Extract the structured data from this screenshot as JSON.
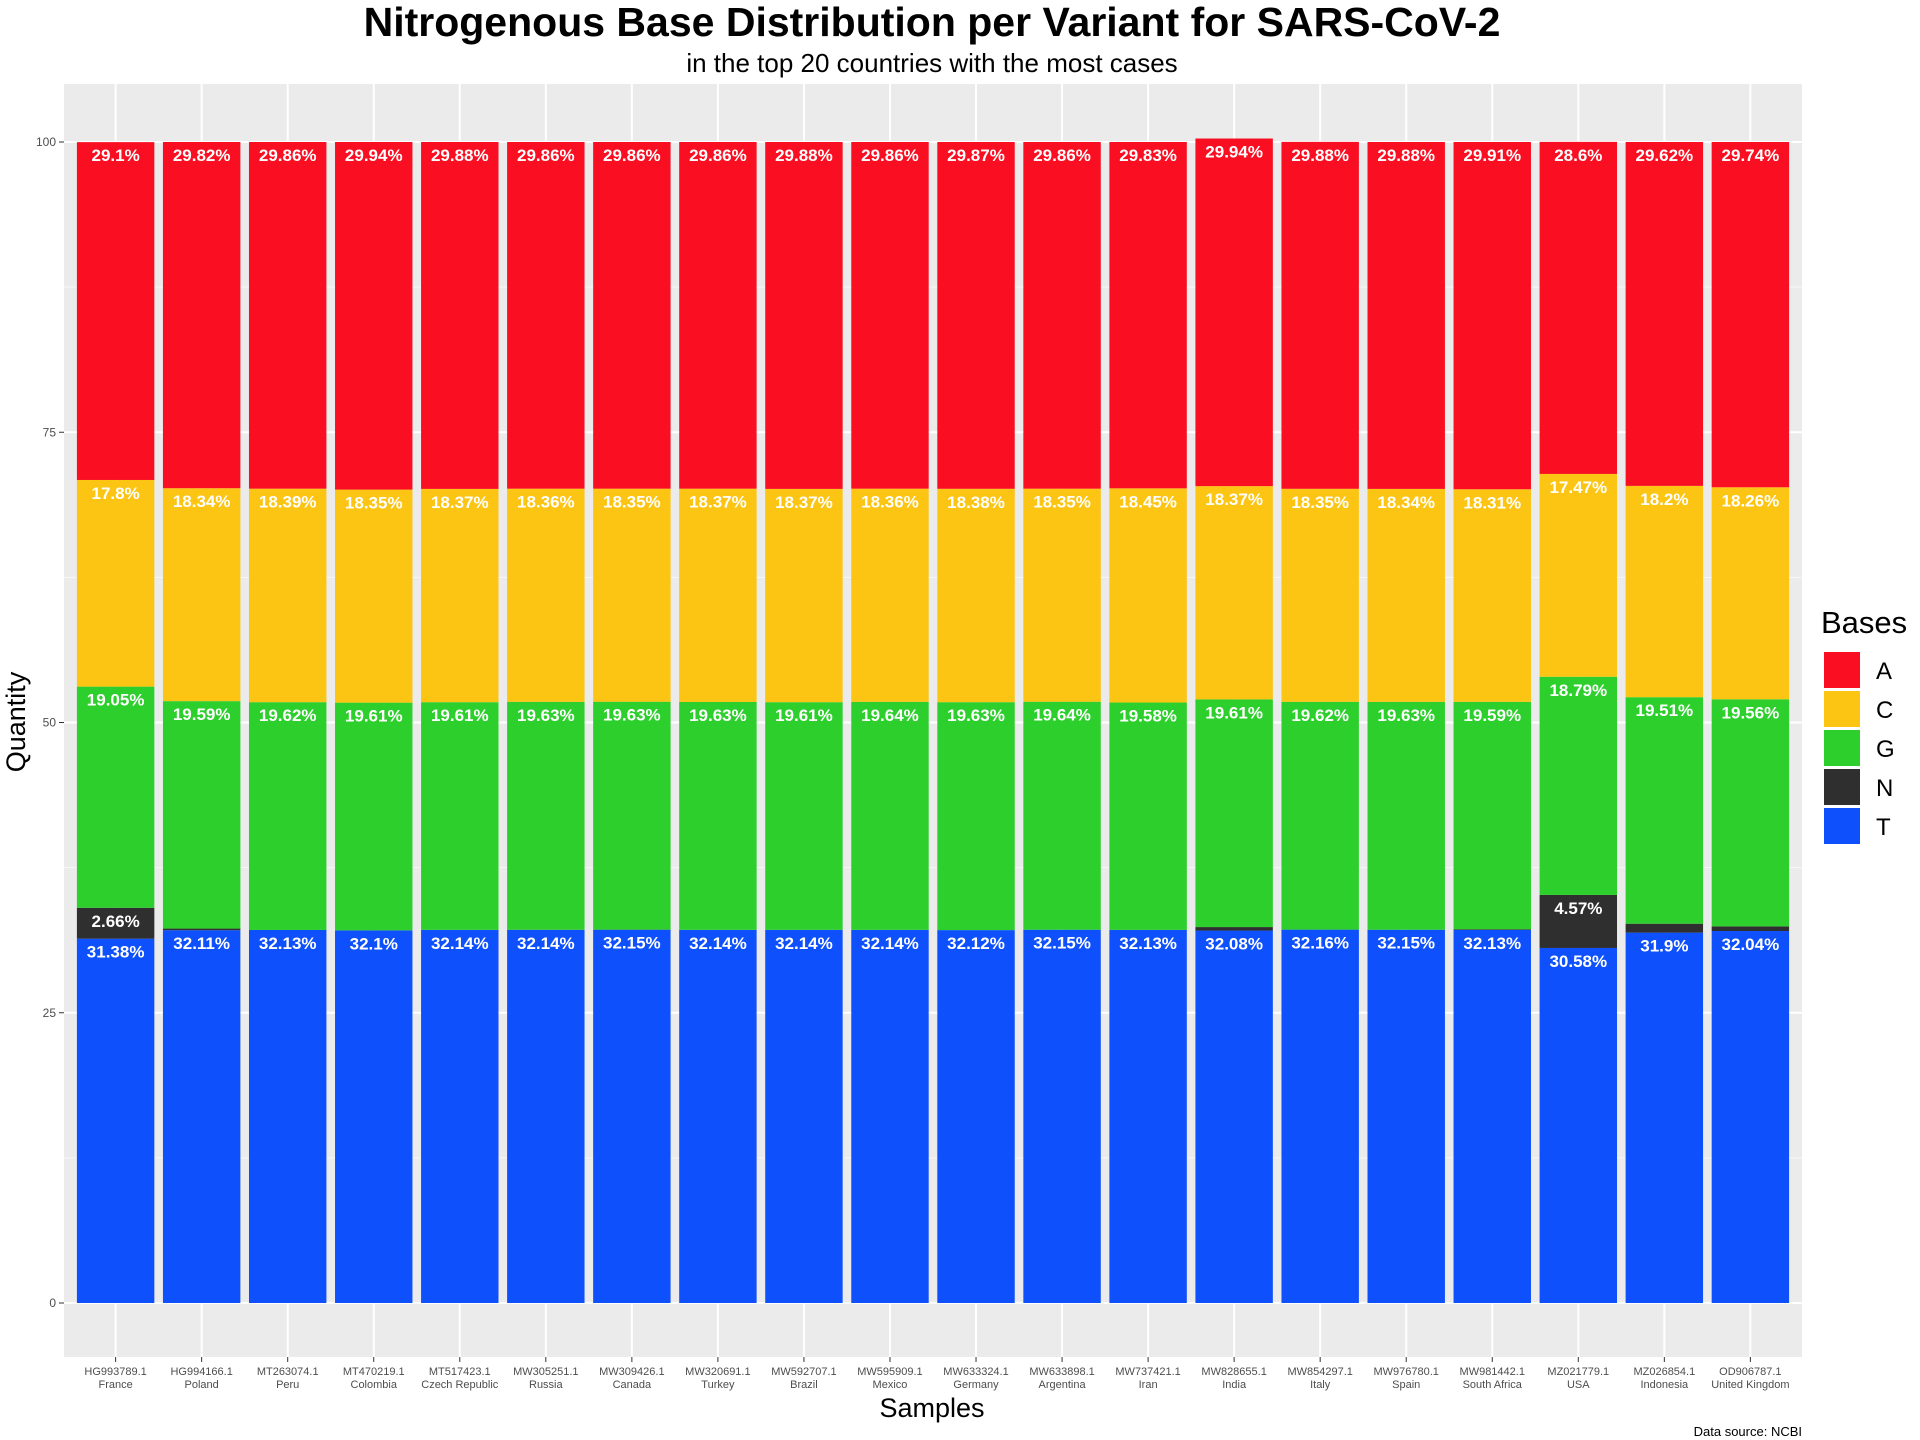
{
  "chart_data": {
    "type": "bar",
    "stacked": true,
    "title": "Nitrogenous Base Distribution per Variant for SARS-CoV-2",
    "subtitle": "in the top 20 countries with the most cases",
    "xlabel": "Samples",
    "ylabel": "Quantity",
    "caption": "Data source: NCBI",
    "ylim": [
      0,
      100
    ],
    "yticks": [
      0,
      25,
      50,
      75,
      100
    ],
    "grid": true,
    "legend": {
      "title": "Bases",
      "placement": "right",
      "items": [
        "A",
        "C",
        "G",
        "N",
        "T"
      ]
    },
    "colors": {
      "A": "#f90f21",
      "C": "#fcc413",
      "G": "#2dcf2d",
      "N": "#2f2f2f",
      "T": "#0f50fd"
    },
    "categories": [
      {
        "id": "HG993789.1",
        "country": "France"
      },
      {
        "id": "HG994166.1",
        "country": "Poland"
      },
      {
        "id": "MT263074.1",
        "country": "Peru"
      },
      {
        "id": "MT470219.1",
        "country": "Colombia"
      },
      {
        "id": "MT517423.1",
        "country": "Czech Republic"
      },
      {
        "id": "MW305251.1",
        "country": "Russia"
      },
      {
        "id": "MW309426.1",
        "country": "Canada"
      },
      {
        "id": "MW320691.1",
        "country": "Turkey"
      },
      {
        "id": "MW592707.1",
        "country": "Brazil"
      },
      {
        "id": "MW595909.1",
        "country": "Mexico"
      },
      {
        "id": "MW633324.1",
        "country": "Germany"
      },
      {
        "id": "MW633898.1",
        "country": "Argentina"
      },
      {
        "id": "MW737421.1",
        "country": "Iran"
      },
      {
        "id": "MW828655.1",
        "country": "India"
      },
      {
        "id": "MW854297.1",
        "country": "Italy"
      },
      {
        "id": "MW976780.1",
        "country": "Spain"
      },
      {
        "id": "MW981442.1",
        "country": "South Africa"
      },
      {
        "id": "MZ021779.1",
        "country": "USA"
      },
      {
        "id": "MZ026854.1",
        "country": "Indonesia"
      },
      {
        "id": "OD906787.1",
        "country": "United Kingdom"
      }
    ],
    "series": [
      {
        "name": "T",
        "values": [
          31.38,
          32.11,
          32.13,
          32.1,
          32.14,
          32.14,
          32.15,
          32.14,
          32.14,
          32.14,
          32.12,
          32.15,
          32.13,
          32.08,
          32.16,
          32.15,
          32.13,
          30.58,
          31.9,
          32.04
        ],
        "labels": [
          "31.38%",
          "32.11%",
          "32.13%",
          "32.1%",
          "32.14%",
          "32.14%",
          "32.15%",
          "32.14%",
          "32.14%",
          "32.14%",
          "32.12%",
          "32.15%",
          "32.13%",
          "32.08%",
          "32.16%",
          "32.15%",
          "32.13%",
          "30.58%",
          "31.9%",
          "32.04%"
        ]
      },
      {
        "name": "N",
        "values": [
          2.66,
          0.14,
          0.0,
          0.0,
          0.0,
          0.01,
          0.01,
          0.0,
          0.0,
          0.0,
          0.0,
          0.0,
          0.01,
          0.3,
          0.0,
          0.0,
          0.06,
          4.57,
          0.77,
          0.4
        ],
        "labels": [
          "2.66%",
          "",
          "",
          "",
          "",
          "",
          "",
          "",
          "",
          "",
          "",
          "",
          "",
          "",
          "",
          "",
          "",
          "4.57%",
          "",
          ""
        ]
      },
      {
        "name": "G",
        "values": [
          19.05,
          19.59,
          19.62,
          19.61,
          19.61,
          19.63,
          19.63,
          19.63,
          19.61,
          19.64,
          19.63,
          19.64,
          19.58,
          19.61,
          19.62,
          19.63,
          19.59,
          18.79,
          19.51,
          19.56
        ],
        "labels": [
          "19.05%",
          "19.59%",
          "19.62%",
          "19.61%",
          "19.61%",
          "19.63%",
          "19.63%",
          "19.63%",
          "19.61%",
          "19.64%",
          "19.63%",
          "19.64%",
          "19.58%",
          "19.61%",
          "19.62%",
          "19.63%",
          "19.59%",
          "18.79%",
          "19.51%",
          "19.56%"
        ]
      },
      {
        "name": "C",
        "values": [
          17.8,
          18.34,
          18.39,
          18.35,
          18.37,
          18.36,
          18.35,
          18.37,
          18.37,
          18.36,
          18.38,
          18.35,
          18.45,
          18.37,
          18.35,
          18.34,
          18.31,
          17.47,
          18.2,
          18.26
        ],
        "labels": [
          "17.8%",
          "18.34%",
          "18.39%",
          "18.35%",
          "18.37%",
          "18.36%",
          "18.35%",
          "18.37%",
          "18.37%",
          "18.36%",
          "18.38%",
          "18.35%",
          "18.45%",
          "18.37%",
          "18.35%",
          "18.34%",
          "18.31%",
          "17.47%",
          "18.2%",
          "18.26%"
        ]
      },
      {
        "name": "A",
        "values": [
          29.1,
          29.82,
          29.86,
          29.94,
          29.88,
          29.86,
          29.86,
          29.86,
          29.88,
          29.86,
          29.87,
          29.86,
          29.83,
          29.94,
          29.88,
          29.88,
          29.91,
          28.6,
          29.62,
          29.74
        ],
        "labels": [
          "29.1%",
          "29.82%",
          "29.86%",
          "29.94%",
          "29.88%",
          "29.86%",
          "29.86%",
          "29.86%",
          "29.88%",
          "29.86%",
          "29.87%",
          "29.86%",
          "29.83%",
          "29.94%",
          "29.88%",
          "29.88%",
          "29.91%",
          "28.6%",
          "29.62%",
          "29.74%"
        ]
      }
    ]
  }
}
